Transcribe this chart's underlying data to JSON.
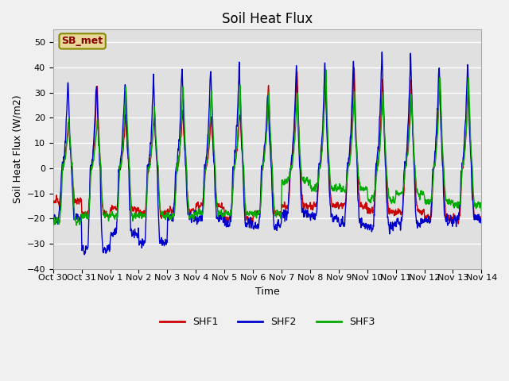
{
  "title": "Soil Heat Flux",
  "ylabel": "Soil Heat Flux (W/m2)",
  "xlabel": "Time",
  "ylim": [
    -40,
    55
  ],
  "yticks": [
    -40,
    -30,
    -20,
    -10,
    0,
    10,
    20,
    30,
    40,
    50
  ],
  "colors": {
    "SHF1": "#cc0000",
    "SHF2": "#0000cc",
    "SHF3": "#00aa00"
  },
  "annotation_text": "SB_met",
  "annotation_color": "#880000",
  "annotation_bg": "#e8d898",
  "annotation_edge": "#888800",
  "bg_color": "#e0e0e0",
  "grid_color": "#ffffff",
  "linewidth": 1.0,
  "x_tick_labels": [
    "Oct 30",
    "Oct 31",
    "Nov 1",
    "Nov 2",
    "Nov 3",
    "Nov 4",
    "Nov 5",
    "Nov 6",
    "Nov 7",
    "Nov 8",
    "Nov 9",
    "Nov 10",
    "Nov 11",
    "Nov 12",
    "Nov 13",
    "Nov 14"
  ],
  "title_fontsize": 12,
  "axis_fontsize": 9,
  "tick_fontsize": 8,
  "fig_bg": "#f0f0f0"
}
